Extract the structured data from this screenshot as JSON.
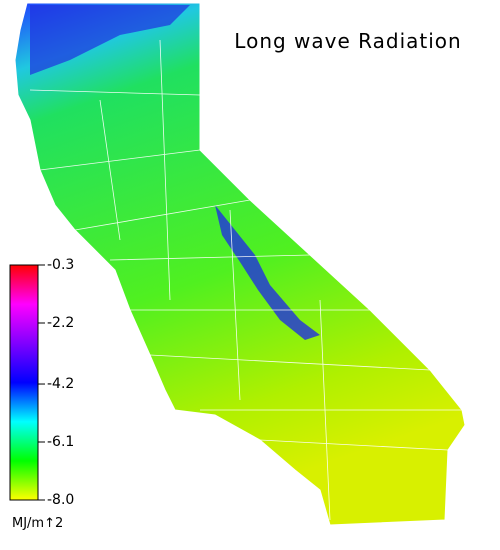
{
  "title": "Long wave Radiation",
  "colorbar": {
    "lim": [
      -8,
      -0.3
    ],
    "ticks": [
      -0.3,
      -2.2,
      -4.2,
      -6.1,
      {
        "value": -8,
        "label": "-8.0"
      }
    ],
    "colors": [
      "#ffff00",
      "#00ff00",
      "#00ffff",
      "#0000ff",
      "#8000ff",
      "#ff00ff",
      "#ff0000"
    ],
    "label": "MJ/m↑2"
  }
}
